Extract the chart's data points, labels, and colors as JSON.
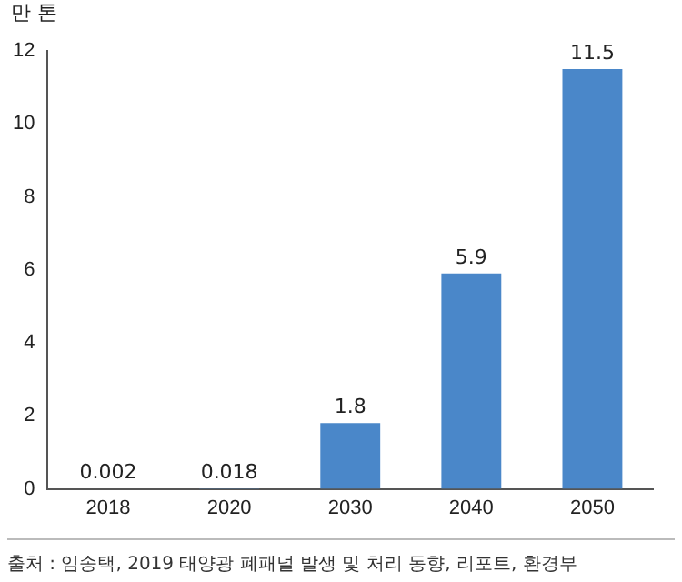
{
  "chart_data": {
    "type": "bar",
    "ylabel": "만 톤",
    "categories": [
      "2018",
      "2020",
      "2030",
      "2040",
      "2050"
    ],
    "values": [
      0.002,
      0.018,
      1.8,
      5.9,
      11.5
    ],
    "color": "#4a87c9",
    "ylim": [
      0,
      12
    ],
    "yticks": [
      0,
      2,
      4,
      6,
      8,
      10,
      12
    ],
    "grid": false,
    "legend": false,
    "data_labels": true,
    "annotations": [
      "출처 : 임송택, 2019 태양광 폐패널 발생 및 처리 동향, 리포트, 환경부"
    ]
  }
}
